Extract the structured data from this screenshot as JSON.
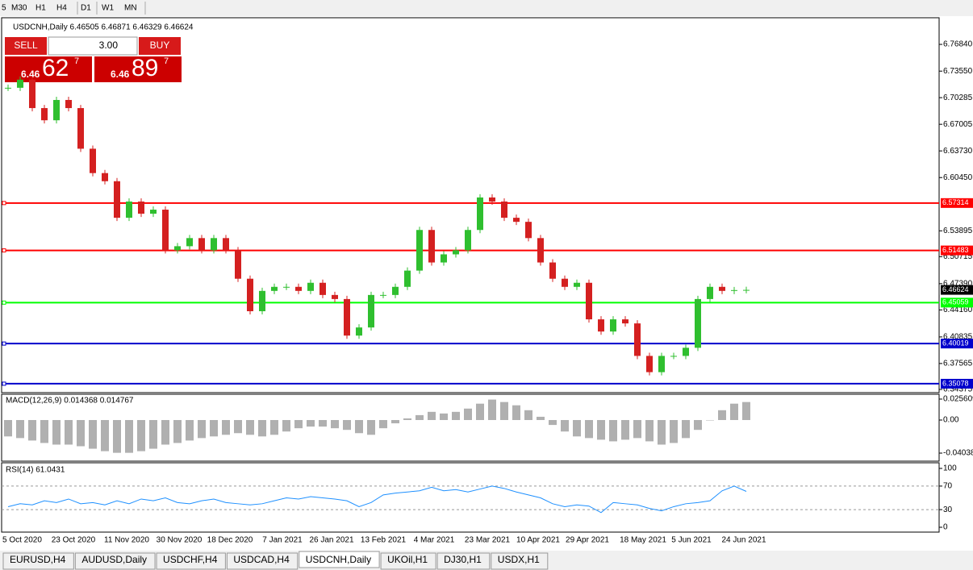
{
  "toolbar": [
    "5",
    "M30",
    "H1",
    "H4",
    "D1",
    "W1",
    "MN"
  ],
  "trade_panel": {
    "sell": "SELL",
    "buy": "BUY",
    "lots": "3.00",
    "sell_big": "6.46",
    "sell_digits": "62",
    "sell_sup": "7",
    "buy_big": "6.46",
    "buy_digits": "89",
    "buy_sup": "7"
  },
  "chart_data": {
    "type": "candlestick",
    "title": "USDCNH,Daily  6.46505 6.46871 6.46329 6.46624",
    "closes": [
      6.715,
      6.725,
      6.69,
      6.675,
      6.7,
      6.69,
      6.64,
      6.61,
      6.6,
      6.555,
      6.575,
      6.56,
      6.565,
      6.515,
      6.52,
      6.53,
      6.515,
      6.53,
      6.515,
      6.48,
      6.44,
      6.465,
      6.47,
      6.47,
      6.465,
      6.475,
      6.46,
      6.455,
      6.41,
      6.42,
      6.46,
      6.46,
      6.47,
      6.49,
      6.54,
      6.5,
      6.51,
      6.515,
      6.54,
      6.58,
      6.575,
      6.555,
      6.55,
      6.53,
      6.5,
      6.48,
      6.47,
      6.475,
      6.43,
      6.415,
      6.43,
      6.425,
      6.385,
      6.365,
      6.385,
      6.385,
      6.395,
      6.455,
      6.47,
      6.465,
      6.466,
      6.46624
    ],
    "up_color": "#2fbf2f",
    "down_color": "#d42020",
    "ylim": [
      6.3398,
      6.8012
    ],
    "yticks": [
      {
        "value": 6.7684,
        "label": "6.76840"
      },
      {
        "value": 6.7355,
        "label": "6.73550"
      },
      6.70285,
      6.67005,
      {
        "value": 6.6373,
        "label": "6.63730"
      },
      {
        "value": 6.6045,
        "label": "6.60450"
      },
      6.53895,
      6.50715,
      {
        "value": 6.4739,
        "label": "6.47390"
      },
      {
        "value": 6.4416,
        "label": "6.44160"
      },
      6.40835,
      6.37565,
      6.34375
    ],
    "levels": [
      {
        "value": 6.57314,
        "color": "#ff0000"
      },
      {
        "value": 6.51483,
        "color": "#ff0000"
      },
      {
        "value": 6.45059,
        "color": "#00ff00"
      },
      {
        "value": 6.40019,
        "color": "#0000cc"
      },
      {
        "value": 6.35078,
        "color": "#0000cc"
      }
    ],
    "last_price": 6.46624,
    "x_labels": [
      "5 Oct 2020",
      "23 Oct 2020",
      "11 Nov 2020",
      "30 Nov 2020",
      "18 Dec 2020",
      "7 Jan 2021",
      "26 Jan 2021",
      "13 Feb 2021",
      "4 Mar 2021",
      "23 Mar 2021",
      "10 Apr 2021",
      "29 Apr 2021",
      "18 May 2021",
      "5 Jun 2021",
      "24 Jun 2021"
    ]
  },
  "macd": {
    "title": "MACD(12,26,9) 0.014368 0.014767",
    "color": "#b0b0b0",
    "values": [
      -0.02,
      -0.022,
      -0.025,
      -0.028,
      -0.03,
      -0.03,
      -0.032,
      -0.035,
      -0.038,
      -0.04,
      -0.04,
      -0.038,
      -0.035,
      -0.03,
      -0.028,
      -0.025,
      -0.022,
      -0.02,
      -0.018,
      -0.016,
      -0.018,
      -0.02,
      -0.018,
      -0.014,
      -0.01,
      -0.008,
      -0.008,
      -0.01,
      -0.012,
      -0.016,
      -0.018,
      -0.01,
      -0.004,
      0.002,
      0.006,
      0.01,
      0.008,
      0.01,
      0.014,
      0.02,
      0.025,
      0.022,
      0.018,
      0.012,
      0.004,
      -0.006,
      -0.014,
      -0.02,
      -0.022,
      -0.024,
      -0.026,
      -0.024,
      -0.022,
      -0.026,
      -0.03,
      -0.028,
      -0.022,
      -0.012,
      0.0,
      0.012,
      0.02,
      0.022
    ],
    "ylim": [
      -0.0502,
      0.0315
    ],
    "yticks": [
      0.025609,
      {
        "value": 0,
        "label": "0.00"
      },
      {
        "value": -0.04038,
        "label": "-0.040380"
      }
    ]
  },
  "rsi": {
    "title": "RSI(14) 61.0431",
    "color": "#1e90ff",
    "values": [
      35,
      40,
      38,
      45,
      42,
      48,
      40,
      42,
      38,
      45,
      40,
      48,
      45,
      50,
      42,
      40,
      45,
      48,
      42,
      40,
      38,
      40,
      45,
      50,
      48,
      52,
      50,
      48,
      45,
      35,
      42,
      55,
      58,
      60,
      62,
      68,
      62,
      64,
      60,
      65,
      70,
      66,
      60,
      55,
      50,
      40,
      35,
      38,
      36,
      25,
      42,
      40,
      38,
      32,
      28,
      35,
      40,
      42,
      45,
      62,
      70,
      61
    ],
    "ylim": [
      -8.2,
      109.6
    ],
    "yticks": [
      100,
      70,
      30,
      0
    ],
    "dashed": [
      70,
      30
    ]
  },
  "tabs": [
    "EURUSD,H4",
    "AUDUSD,Daily",
    "USDCHF,H4",
    "USDCAD,H4",
    "USDCNH,Daily",
    "UKOil,H1",
    "DJ30,H1",
    "USDX,H1"
  ],
  "active_tab": 4
}
